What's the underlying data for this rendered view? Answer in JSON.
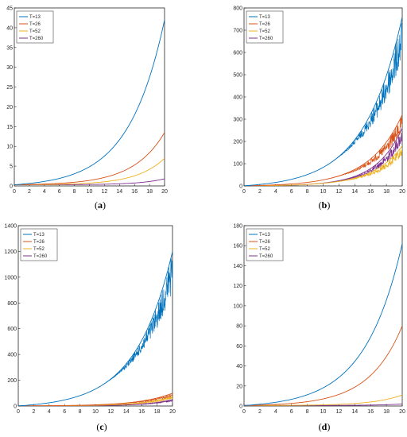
{
  "colors": [
    "#0072bd",
    "#d95319",
    "#edb120",
    "#7e2f8e"
  ],
  "chart_data": [
    {
      "type": "line",
      "panel": "a",
      "caption_open": "(",
      "caption_letter": "a",
      "caption_close": ")",
      "xlim": [
        0,
        20
      ],
      "ylim": [
        0,
        45
      ],
      "xticks": [
        "0",
        "2",
        "4",
        "6",
        "8",
        "10",
        "12",
        "14",
        "16",
        "18",
        "20"
      ],
      "yticks": [
        "0",
        "5",
        "10",
        "15",
        "20",
        "25",
        "30",
        "35",
        "40",
        "45"
      ],
      "legend_position": "top-left",
      "noisy": false,
      "x": [
        0,
        20
      ],
      "series": [
        {
          "name": "T=13",
          "values": [
            0.3,
            42
          ],
          "color": "#0072bd"
        },
        {
          "name": "T=26",
          "values": [
            0.3,
            13.5
          ],
          "color": "#d95319"
        },
        {
          "name": "T=52",
          "values": [
            0.3,
            7
          ],
          "color": "#edb120"
        },
        {
          "name": "T=260",
          "values": [
            0.3,
            1.8
          ],
          "color": "#7e2f8e"
        }
      ]
    },
    {
      "type": "line",
      "panel": "b",
      "caption_open": "(",
      "caption_letter": "b",
      "caption_close": ")",
      "xlim": [
        0,
        20
      ],
      "ylim": [
        0,
        800
      ],
      "xticks": [
        "0",
        "2",
        "4",
        "6",
        "8",
        "10",
        "12",
        "14",
        "16",
        "18",
        "20"
      ],
      "yticks": [
        "0",
        "100",
        "200",
        "300",
        "400",
        "500",
        "600",
        "700",
        "800"
      ],
      "legend_position": "top-left",
      "noisy": true,
      "x": [
        0,
        20
      ],
      "series": [
        {
          "name": "T=13",
          "values": [
            0.5,
            760
          ],
          "color": "#0072bd"
        },
        {
          "name": "T=26",
          "values": [
            0.5,
            320
          ],
          "color": "#d95319"
        },
        {
          "name": "T=52",
          "values": [
            0.5,
            180
          ],
          "color": "#edb120"
        },
        {
          "name": "T=260",
          "values": [
            0.5,
            260
          ],
          "color": "#7e2f8e"
        }
      ]
    },
    {
      "type": "line",
      "panel": "c",
      "caption_open": "(",
      "caption_letter": "c",
      "caption_close": ")",
      "xlim": [
        0,
        20
      ],
      "ylim": [
        0,
        1400
      ],
      "xticks": [
        "0",
        "2",
        "4",
        "6",
        "8",
        "10",
        "12",
        "14",
        "16",
        "18",
        "20"
      ],
      "yticks": [
        "0",
        "200",
        "400",
        "600",
        "800",
        "1000",
        "1200",
        "1400"
      ],
      "legend_position": "top-left",
      "noisy": true,
      "x": [
        0,
        20
      ],
      "series": [
        {
          "name": "T=13",
          "values": [
            1,
            1200
          ],
          "color": "#0072bd"
        },
        {
          "name": "T=26",
          "values": [
            1,
            100
          ],
          "color": "#d95319"
        },
        {
          "name": "T=52",
          "values": [
            1,
            75
          ],
          "color": "#edb120"
        },
        {
          "name": "T=260",
          "values": [
            1,
            50
          ],
          "color": "#7e2f8e"
        }
      ]
    },
    {
      "type": "line",
      "panel": "d",
      "caption_open": "(",
      "caption_letter": "d",
      "caption_close": ")",
      "xlim": [
        0,
        20
      ],
      "ylim": [
        0,
        180
      ],
      "xticks": [
        "0",
        "2",
        "4",
        "6",
        "8",
        "10",
        "12",
        "14",
        "16",
        "18",
        "20"
      ],
      "yticks": [
        "0",
        "20",
        "40",
        "60",
        "80",
        "100",
        "120",
        "140",
        "160",
        "180"
      ],
      "legend_position": "top-left",
      "noisy": false,
      "x": [
        0,
        20
      ],
      "series": [
        {
          "name": "T=13",
          "values": [
            0.5,
            162
          ],
          "color": "#0072bd"
        },
        {
          "name": "T=26",
          "values": [
            0.5,
            80
          ],
          "color": "#d95319"
        },
        {
          "name": "T=52",
          "values": [
            0.5,
            11
          ],
          "color": "#edb120"
        },
        {
          "name": "T=260",
          "values": [
            0.5,
            2
          ],
          "color": "#7e2f8e"
        }
      ]
    }
  ]
}
